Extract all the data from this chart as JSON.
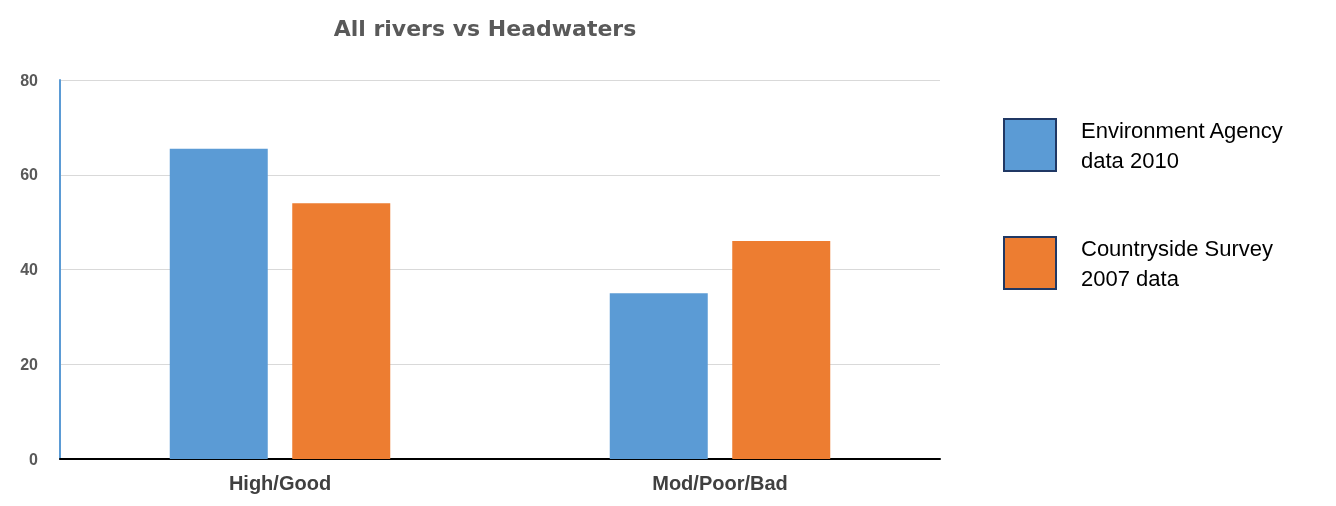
{
  "chart_data": {
    "type": "bar",
    "title": "All rivers vs Headwaters",
    "categories": [
      "High/Good",
      "Mod/Poor/Bad"
    ],
    "series": [
      {
        "name": "Environment Agency data 2010",
        "color": "#5b9bd5",
        "values": [
          65.5,
          35
        ]
      },
      {
        "name": "Countryside Survey 2007 data",
        "color": "#ed7d31",
        "values": [
          54,
          46
        ]
      }
    ],
    "ylim": [
      0,
      80
    ],
    "yticks": [
      0,
      20,
      40,
      60,
      80
    ],
    "grid": "y",
    "legend": "right"
  }
}
